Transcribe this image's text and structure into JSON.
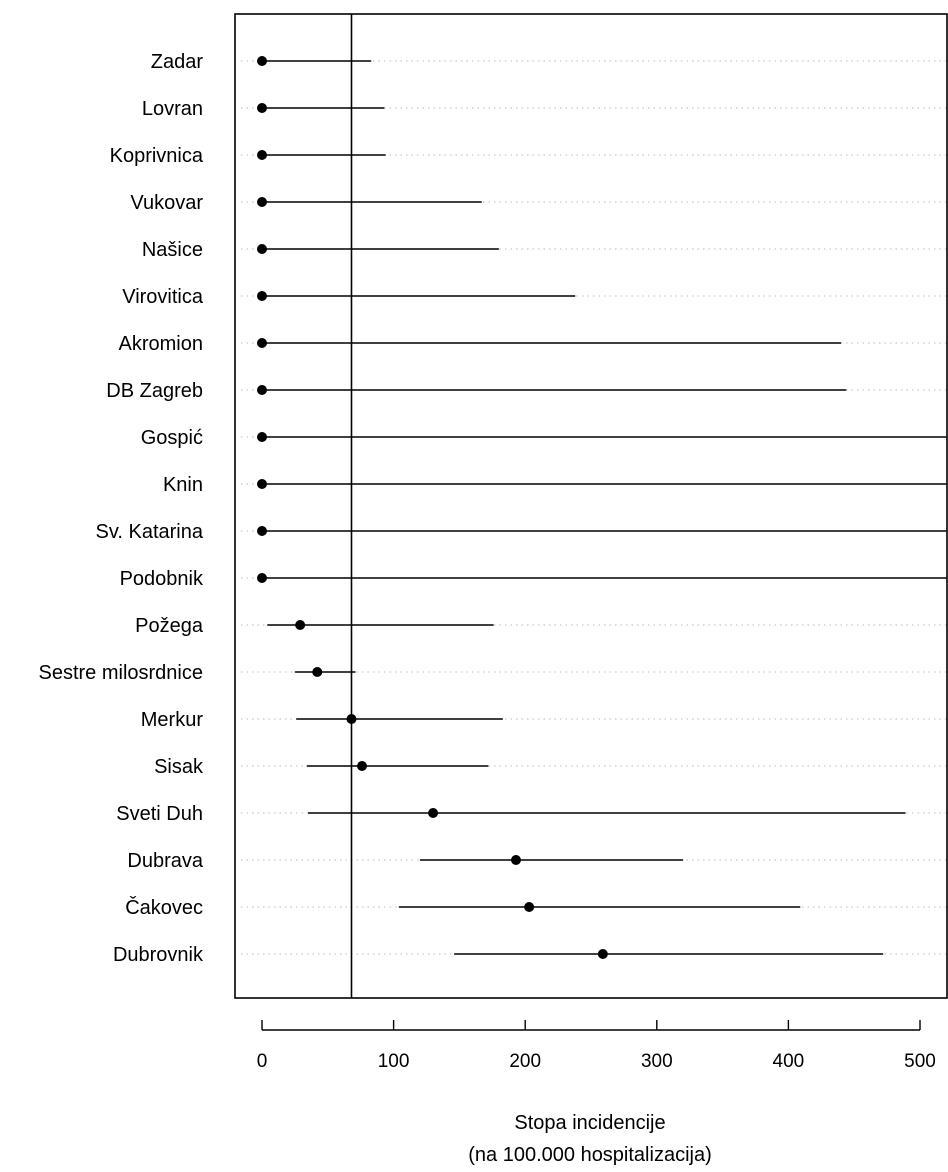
{
  "chart_data": {
    "type": "scatter",
    "xlabel": "Stopa incidencije",
    "xlabel_line2": "(na 100.000 hospitalizacija)",
    "xticks": [
      0,
      100,
      200,
      300,
      400,
      500
    ],
    "xlim": [
      -22,
      520
    ],
    "reference_line": 68,
    "grid": "dotted horizontal guide lines per row",
    "colors": {
      "point": "#000000",
      "line": "#000000",
      "grid": "#bbbbbb"
    },
    "rows": [
      {
        "label": "Zadar",
        "estimate": 0,
        "lower": 0,
        "upper": 83
      },
      {
        "label": "Lovran",
        "estimate": 0,
        "lower": 0,
        "upper": 93
      },
      {
        "label": "Koprivnica",
        "estimate": 0,
        "lower": 0,
        "upper": 94
      },
      {
        "label": "Vukovar",
        "estimate": 0,
        "lower": 0,
        "upper": 167
      },
      {
        "label": "Našice",
        "estimate": 0,
        "lower": 0,
        "upper": 180
      },
      {
        "label": "Virovitica",
        "estimate": 0,
        "lower": 0,
        "upper": 238
      },
      {
        "label": "Akromion",
        "estimate": 0,
        "lower": 0,
        "upper": 440
      },
      {
        "label": "DB Zagreb",
        "estimate": 0,
        "lower": 0,
        "upper": 444
      },
      {
        "label": "Gospić",
        "estimate": 0,
        "lower": 0,
        "upper": 520
      },
      {
        "label": "Knin",
        "estimate": 0,
        "lower": 0,
        "upper": 520
      },
      {
        "label": "Sv. Katarina",
        "estimate": 0,
        "lower": 0,
        "upper": 520
      },
      {
        "label": "Podobnik",
        "estimate": 0,
        "lower": 0,
        "upper": 520
      },
      {
        "label": "Požega",
        "estimate": 29,
        "lower": 4,
        "upper": 176
      },
      {
        "label": "Sestre milosrdnice",
        "estimate": 42,
        "lower": 25,
        "upper": 71
      },
      {
        "label": "Merkur",
        "estimate": 68,
        "lower": 26,
        "upper": 183
      },
      {
        "label": "Sisak",
        "estimate": 76,
        "lower": 34,
        "upper": 172
      },
      {
        "label": "Sveti Duh",
        "estimate": 130,
        "lower": 35,
        "upper": 489
      },
      {
        "label": "Dubrava",
        "estimate": 193,
        "lower": 120,
        "upper": 320
      },
      {
        "label": "Čakovec",
        "estimate": 203,
        "lower": 104,
        "upper": 409
      },
      {
        "label": "Dubrovnik",
        "estimate": 259,
        "lower": 146,
        "upper": 472
      }
    ]
  }
}
